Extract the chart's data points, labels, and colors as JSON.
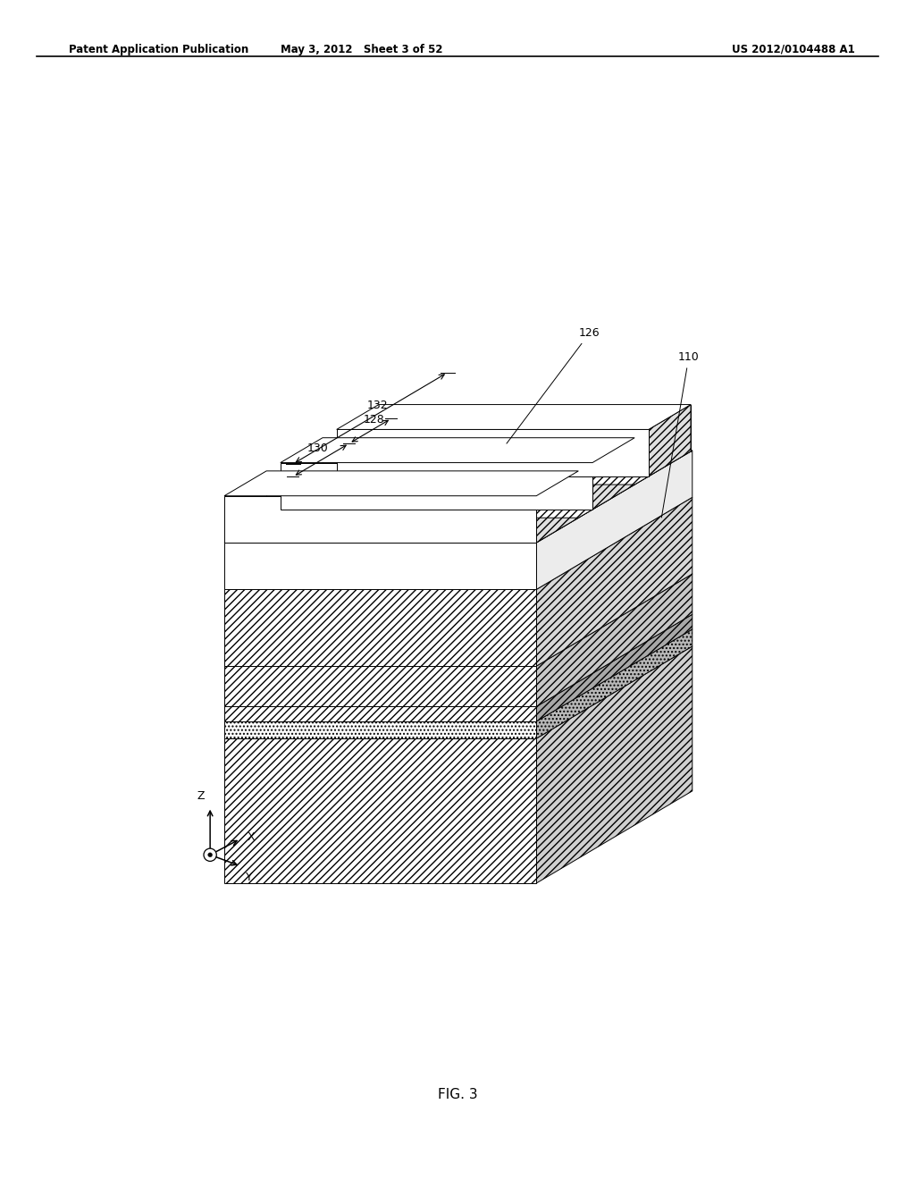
{
  "header_left": "Patent Application Publication",
  "header_mid": "May 3, 2012   Sheet 3 of 52",
  "header_right": "US 2012/0104488 A1",
  "fig_label": "FIG. 3",
  "background": "#ffffff",
  "line_color": "#000000"
}
